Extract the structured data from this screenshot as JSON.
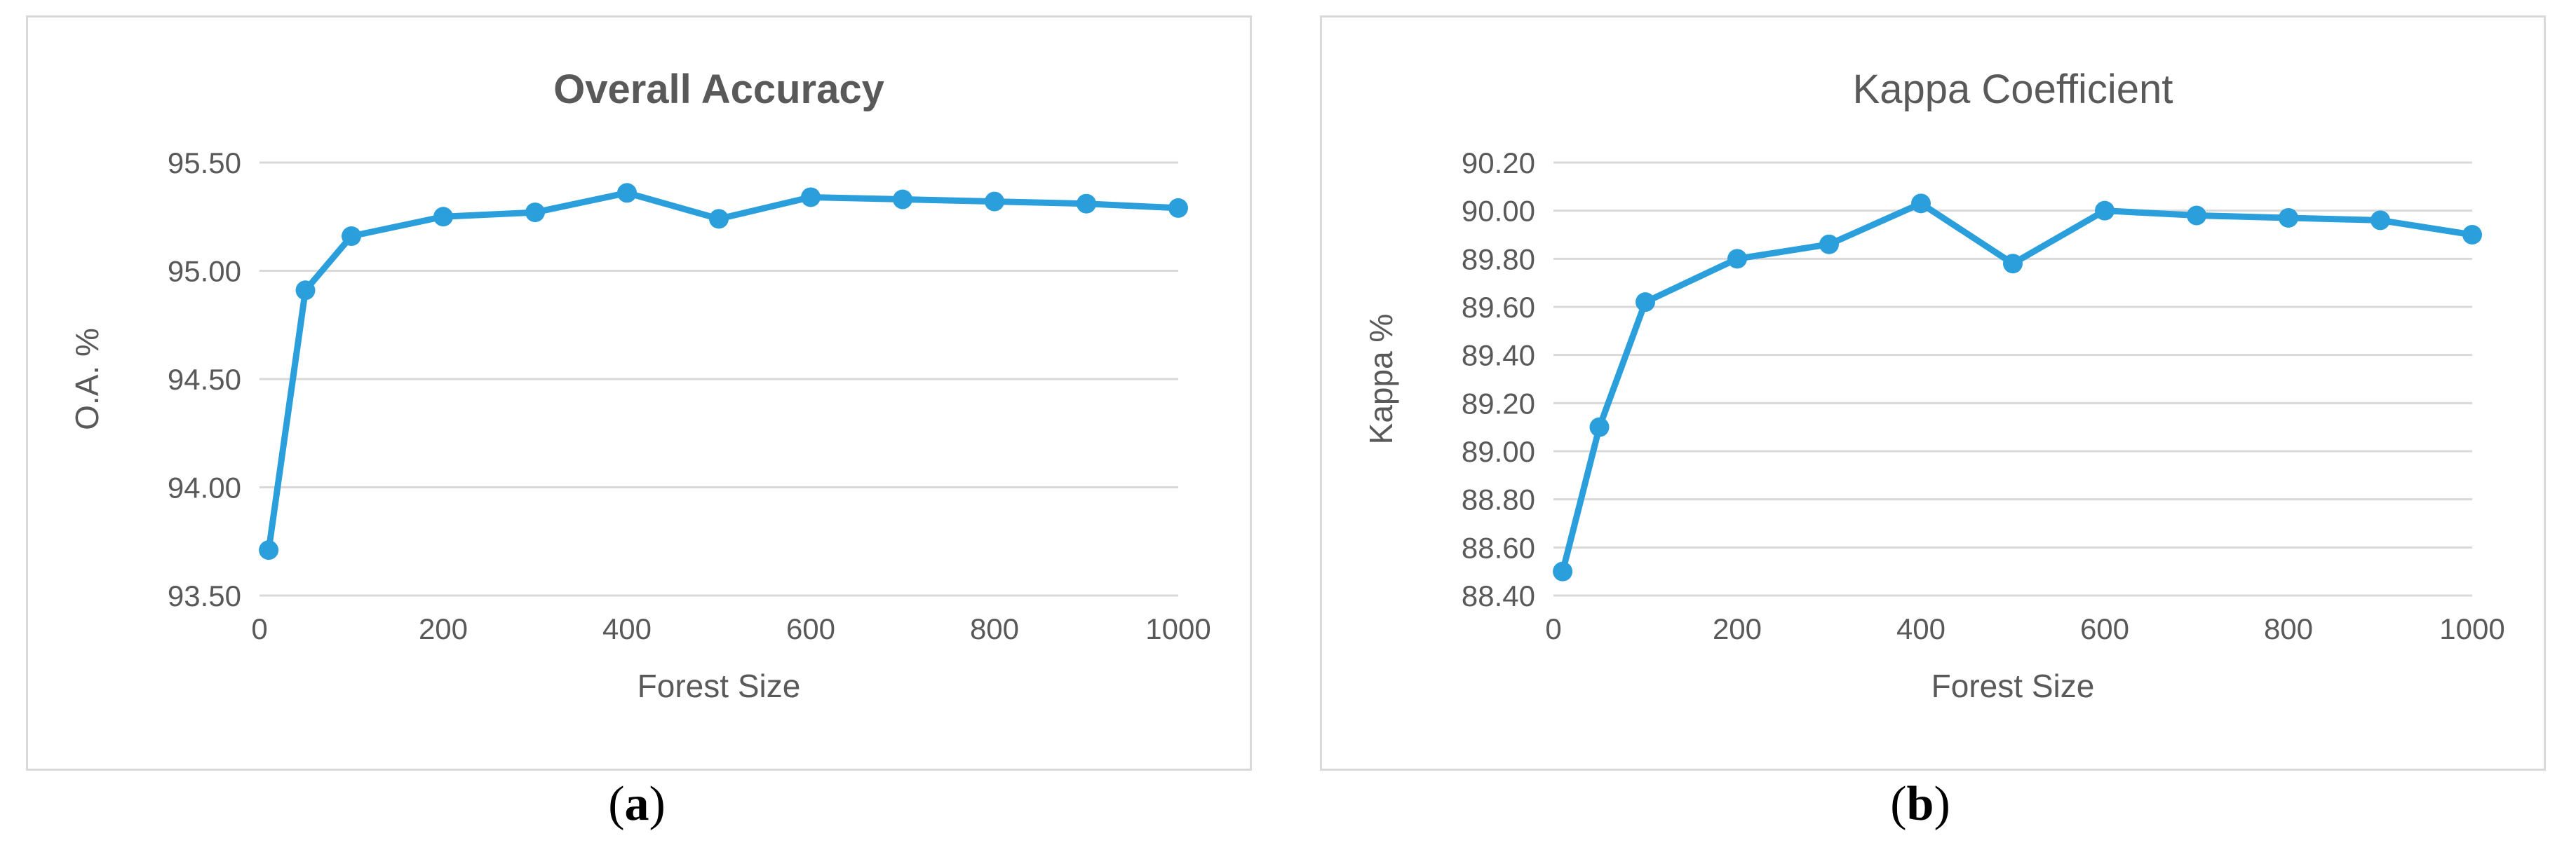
{
  "chart_data": [
    {
      "type": "line",
      "title": "Overall Accuracy",
      "title_bold": true,
      "xlabel": "Forest Size",
      "ylabel": "O.A. %",
      "x": [
        10,
        50,
        100,
        200,
        300,
        400,
        500,
        600,
        700,
        800,
        900,
        1000
      ],
      "series": [
        {
          "values": [
            93.71,
            94.91,
            95.16,
            95.25,
            95.27,
            95.36,
            95.24,
            95.34,
            95.33,
            95.32,
            95.31,
            95.29
          ]
        }
      ],
      "xlim": [
        0,
        1000
      ],
      "ylim": [
        93.5,
        95.5
      ],
      "xticks": [
        "0",
        "200",
        "400",
        "600",
        "800",
        "1000"
      ],
      "yticks": [
        "93.50",
        "94.00",
        "94.50",
        "95.00",
        "95.50"
      ],
      "grid": true,
      "legend": "none",
      "color": "#2b9fdc"
    },
    {
      "type": "line",
      "title": "Kappa  Coefficient",
      "title_bold": false,
      "xlabel": "Forest Size",
      "ylabel": "Kappa %",
      "x": [
        10,
        50,
        100,
        200,
        300,
        400,
        500,
        600,
        700,
        800,
        900,
        1000
      ],
      "series": [
        {
          "values": [
            88.5,
            89.1,
            89.62,
            89.8,
            89.86,
            90.03,
            89.78,
            90.0,
            89.98,
            89.97,
            89.96,
            89.9
          ]
        }
      ],
      "xlim": [
        0,
        1000
      ],
      "ylim": [
        88.4,
        90.2
      ],
      "xticks": [
        "0",
        "200",
        "400",
        "600",
        "800",
        "1000"
      ],
      "yticks": [
        "88.40",
        "88.60",
        "88.80",
        "89.00",
        "89.20",
        "89.40",
        "89.60",
        "89.80",
        "90.00",
        "90.20"
      ],
      "grid": true,
      "legend": "none",
      "color": "#2b9fdc"
    }
  ],
  "captions": [
    {
      "label": "a"
    },
    {
      "label": "b"
    }
  ]
}
